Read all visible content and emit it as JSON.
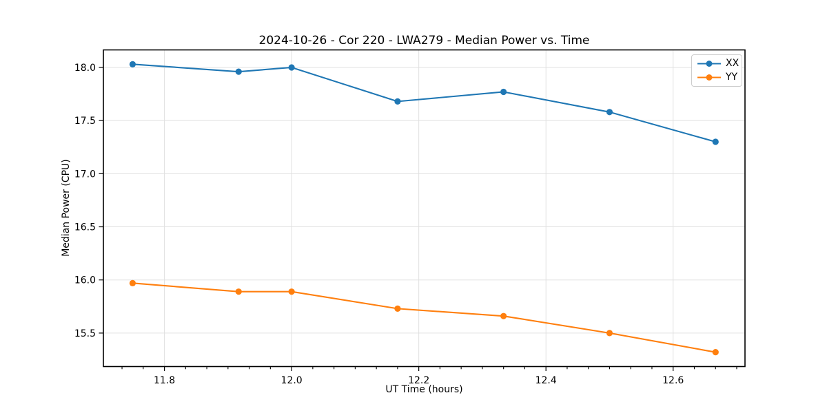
{
  "figure": {
    "title": "2024-10-26 - Cor 220 - LWA279 - Median Power vs. Time",
    "xlabel": "UT Time (hours)",
    "ylabel": "Median Power (CPU)"
  },
  "chart_data": {
    "type": "line",
    "title": "2024-10-26 - Cor 220 - LWA279 - Median Power vs. Time",
    "xlabel": "UT Time (hours)",
    "ylabel": "Median Power (CPU)",
    "x": [
      11.75,
      11.9167,
      12.0,
      12.1667,
      12.3333,
      12.5,
      12.6667
    ],
    "series": [
      {
        "name": "XX",
        "color": "#1f77b4",
        "values": [
          18.03,
          17.96,
          18.0,
          17.68,
          17.77,
          17.58,
          17.3
        ]
      },
      {
        "name": "YY",
        "color": "#ff7f0e",
        "values": [
          15.97,
          15.89,
          15.89,
          15.73,
          15.66,
          15.5,
          15.32
        ]
      }
    ],
    "xlim": [
      11.704,
      12.713
    ],
    "ylim": [
      15.185,
      18.165
    ],
    "xticks": [
      11.8,
      12.0,
      12.2,
      12.4,
      12.6
    ],
    "xtick_labels": [
      "11.8",
      "12.0",
      "12.2",
      "12.4",
      "12.6"
    ],
    "yticks": [
      15.5,
      16.0,
      16.5,
      17.0,
      17.5,
      18.0
    ],
    "ytick_labels": [
      "15.5",
      "16.0",
      "16.5",
      "17.0",
      "17.5",
      "18.0"
    ],
    "x_minor_step": 0.0333333,
    "minors_per_major": 6,
    "grid": true,
    "grid_color": "#e0e0e0",
    "axis_color": "#000000",
    "marker": "circle",
    "legend_position": "top-right"
  }
}
